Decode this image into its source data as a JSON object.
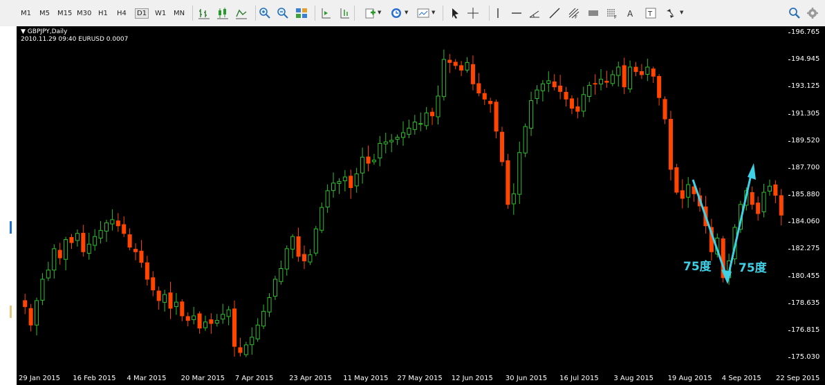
{
  "toolbar": {
    "timeframes": [
      "M1",
      "M5",
      "M15",
      "M30",
      "H1",
      "H4",
      "D1",
      "W1",
      "MN"
    ],
    "selected_timeframe": "D1",
    "chart_tools": [
      "bar-chart-icon",
      "candlestick-icon",
      "line-chart-icon"
    ],
    "zoom_tools": [
      "zoom-in-icon",
      "zoom-out-icon",
      "tile-windows-icon"
    ],
    "scroll_tools": [
      "autoscroll-icon",
      "chart-shift-icon"
    ],
    "menu_tools": [
      "indicators-icon",
      "periods-icon",
      "templates-icon"
    ],
    "draw_tools": [
      "cursor-icon",
      "crosshair-icon",
      "vertical-line-icon",
      "horizontal-line-icon",
      "trendline-angle-icon",
      "trendline-icon",
      "fibonacci-icon",
      "rectangle-icon",
      "channel-icon",
      "text-icon",
      "text-label-icon",
      "arrows-icon"
    ],
    "right_tools": [
      "search-icon",
      "settings-icon"
    ]
  },
  "chart": {
    "symbol": "GBPJPY,Daily",
    "info": "2010.11.29 09:40 EURUSD 0.0007",
    "annotation_left": "75度",
    "annotation_right": "75度",
    "colors": {
      "background": "#000000",
      "up": "#2fbf2f",
      "down": "#ff4500",
      "arrow": "#3fd0e6"
    }
  },
  "chart_data": {
    "type": "candlestick",
    "price_axis_labels": [
      "196.765",
      "194.945",
      "193.125",
      "191.305",
      "189.520",
      "187.700",
      "185.880",
      "184.060",
      "182.275",
      "180.455",
      "178.635",
      "176.815",
      "175.030"
    ],
    "time_axis_labels": [
      "29 Jan 2015",
      "16 Feb 2015",
      "4 Mar 2015",
      "20 Mar 2015",
      "7 Apr 2015",
      "23 Apr 2015",
      "11 May 2015",
      "27 May 2015",
      "12 Jun 2015",
      "30 Jun 2015",
      "16 Jul 2015",
      "3 Aug 2015",
      "19 Aug 2015",
      "4 Sep 2015",
      "22 Sep 2015"
    ],
    "ylim": [
      175.03,
      196.765
    ],
    "closes": [
      178.8,
      177.6,
      179.2,
      180.6,
      181.2,
      182.6,
      182.0,
      183.2,
      183.0,
      183.6,
      182.4,
      182.9,
      183.4,
      183.8,
      184.3,
      184.5,
      184.1,
      183.6,
      182.7,
      182.4,
      181.7,
      180.6,
      179.9,
      179.2,
      179.6,
      178.7,
      179.1,
      178.2,
      177.9,
      178.2,
      177.4,
      177.8,
      177.7,
      177.9,
      178.3,
      178.6,
      176.2,
      175.8,
      176.3,
      176.8,
      177.6,
      178.5,
      179.4,
      180.6,
      181.3,
      182.6,
      183.4,
      182.1,
      181.8,
      182.2,
      183.9,
      185.3,
      186.4,
      186.9,
      187.0,
      187.3,
      186.6,
      187.5,
      188.6,
      188.2,
      188.4,
      189.5,
      189.6,
      189.7,
      189.9,
      190.2,
      190.5,
      190.9,
      190.8,
      191.5,
      191.3,
      192.6,
      195.0,
      194.8,
      194.6,
      194.3,
      194.8,
      193.4,
      192.8,
      192.4,
      192.1,
      190.3,
      188.3,
      185.5,
      186.2,
      188.9,
      190.6,
      192.3,
      193.0,
      193.4,
      193.6,
      193.2,
      192.9,
      192.4,
      191.8,
      191.6,
      192.7,
      193.3,
      193.4,
      193.7,
      193.5,
      194.0,
      194.5,
      193.2,
      194.5,
      194.2,
      194.0,
      194.5,
      193.9,
      192.5,
      191.1,
      187.8,
      186.3,
      185.9,
      186.8,
      186.2,
      185.4,
      184.1,
      182.4,
      183.3,
      180.7,
      181.8,
      184.0,
      185.5,
      186.4,
      185.5,
      184.9,
      186.3,
      186.7,
      186.1,
      184.8
    ]
  }
}
